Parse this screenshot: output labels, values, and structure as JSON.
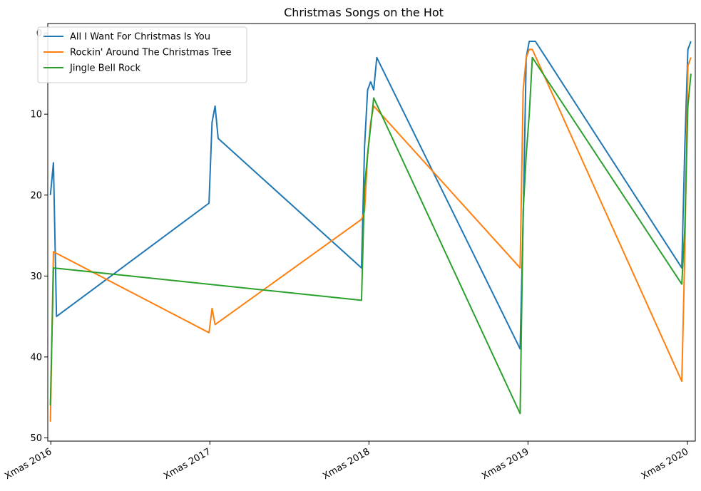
{
  "chart_data": {
    "type": "line",
    "title": "Christmas Songs on the Hot",
    "xlabel": "",
    "ylabel": "",
    "x_range": [
      "2016-12-18",
      "2021-01-12"
    ],
    "y_range_inverted": [
      50,
      0
    ],
    "yticks": [
      0,
      10,
      20,
      30,
      40,
      50
    ],
    "xticks": [
      {
        "label": "Xmas 2016",
        "date": "2016-12-25"
      },
      {
        "label": "Xmas 2017",
        "date": "2017-12-25"
      },
      {
        "label": "Xmas 2018",
        "date": "2018-12-25"
      },
      {
        "label": "Xmas 2019",
        "date": "2019-12-25"
      },
      {
        "label": "Xmas 2020",
        "date": "2020-12-25"
      }
    ],
    "grid": false,
    "legend_position": "top-left",
    "series": [
      {
        "name": "All I Want For Christmas Is You",
        "color": "#1f77b4",
        "points": [
          [
            "2016-12-24",
            20
          ],
          [
            "2016-12-31",
            16
          ],
          [
            "2017-01-07",
            35
          ],
          [
            "2017-12-23",
            21
          ],
          [
            "2017-12-30",
            11
          ],
          [
            "2018-01-06",
            9
          ],
          [
            "2018-01-13",
            13
          ],
          [
            "2018-12-08",
            29
          ],
          [
            "2018-12-15",
            14
          ],
          [
            "2018-12-22",
            7
          ],
          [
            "2018-12-29",
            6
          ],
          [
            "2019-01-05",
            7
          ],
          [
            "2019-01-12",
            3
          ],
          [
            "2019-12-07",
            39
          ],
          [
            "2019-12-14",
            23
          ],
          [
            "2019-12-21",
            3
          ],
          [
            "2019-12-28",
            1
          ],
          [
            "2020-01-04",
            1
          ],
          [
            "2020-01-11",
            1
          ],
          [
            "2020-12-12",
            29
          ],
          [
            "2020-12-19",
            14
          ],
          [
            "2020-12-26",
            2
          ],
          [
            "2021-01-02",
            1
          ]
        ]
      },
      {
        "name": "Rockin' Around The Christmas Tree",
        "color": "#ff7f0e",
        "points": [
          [
            "2016-12-24",
            48
          ],
          [
            "2016-12-31",
            27
          ],
          [
            "2017-12-23",
            37
          ],
          [
            "2017-12-30",
            34
          ],
          [
            "2018-01-06",
            36
          ],
          [
            "2018-12-08",
            23
          ],
          [
            "2018-12-15",
            22
          ],
          [
            "2018-12-22",
            15
          ],
          [
            "2018-12-29",
            11
          ],
          [
            "2019-01-05",
            9
          ],
          [
            "2019-12-07",
            29
          ],
          [
            "2019-12-14",
            7
          ],
          [
            "2019-12-21",
            3
          ],
          [
            "2019-12-28",
            2
          ],
          [
            "2020-01-04",
            2
          ],
          [
            "2020-12-12",
            43
          ],
          [
            "2020-12-19",
            27
          ],
          [
            "2020-12-26",
            4
          ],
          [
            "2021-01-02",
            3
          ]
        ]
      },
      {
        "name": "Jingle Bell Rock",
        "color": "#2ca02c",
        "points": [
          [
            "2016-12-24",
            46
          ],
          [
            "2016-12-31",
            29
          ],
          [
            "2018-12-08",
            33
          ],
          [
            "2018-12-15",
            19
          ],
          [
            "2018-12-22",
            15
          ],
          [
            "2019-01-05",
            8
          ],
          [
            "2019-12-07",
            47
          ],
          [
            "2019-12-14",
            22
          ],
          [
            "2019-12-21",
            15
          ],
          [
            "2019-12-28",
            10
          ],
          [
            "2020-01-04",
            3
          ],
          [
            "2020-12-12",
            31
          ],
          [
            "2020-12-19",
            24
          ],
          [
            "2020-12-26",
            9
          ],
          [
            "2021-01-02",
            5
          ]
        ]
      }
    ]
  }
}
